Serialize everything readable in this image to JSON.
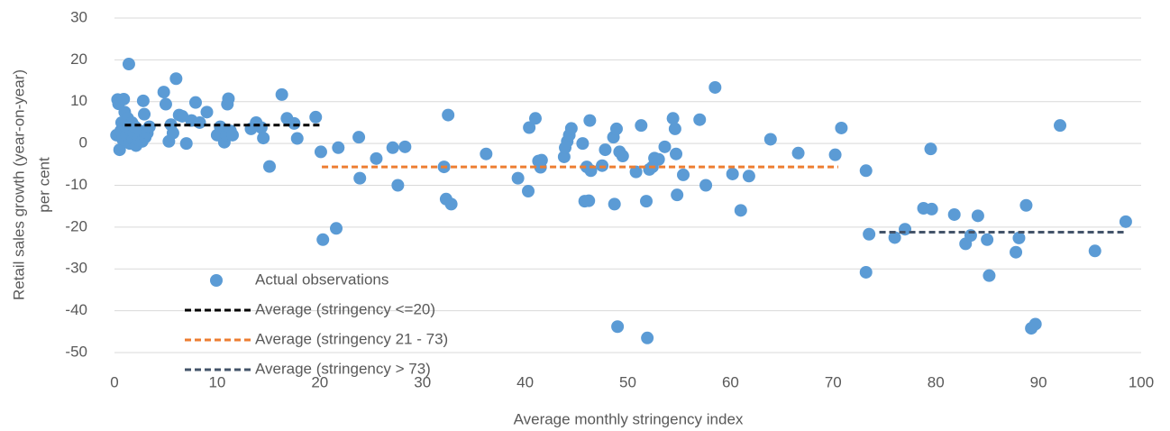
{
  "chart_data": {
    "type": "scatter",
    "xlabel": "Average monthly stringency index",
    "ylabel": [
      "Retail sales growth (year-on-year)",
      "per cent"
    ],
    "xlim": [
      0,
      100
    ],
    "xticks": [
      0,
      10,
      20,
      30,
      40,
      50,
      60,
      70,
      80,
      90,
      100
    ],
    "ylim": [
      -50,
      30
    ],
    "yticks": [
      -50,
      -40,
      -30,
      -20,
      -10,
      0,
      10,
      20,
      30
    ],
    "grid": true,
    "legend": "lower left",
    "series": [
      {
        "name": "Actual observations",
        "color": "#5b9bd5",
        "mode": "markers",
        "x": [
          0.2,
          0.3,
          0.4,
          0.5,
          0.6,
          0.7,
          0.8,
          0.9,
          1,
          1.1,
          1.2,
          1.3,
          1.4,
          1.5,
          1.6,
          1.7,
          1.8,
          1.9,
          2,
          2.1,
          2.3,
          2.5,
          2.7,
          2.8,
          2.9,
          3,
          3.2,
          3.4,
          4.8,
          5,
          5.3,
          5.5,
          5.7,
          6,
          6.3,
          6.6,
          7,
          7.5,
          7.9,
          8.3,
          9,
          10,
          10.3,
          10.5,
          10.7,
          10.9,
          11,
          11.1,
          11.3,
          11.5,
          13.3,
          13.8,
          14.3,
          14.5,
          15.1,
          16.3,
          16.8,
          17.5,
          17.8,
          19.6,
          20.1,
          20.3,
          21.6,
          21.8,
          23.8,
          23.9,
          25.5,
          27.1,
          27.6,
          28.3,
          32.1,
          32.3,
          32.5,
          32.8,
          36.2,
          39.3,
          40.3,
          40.4,
          41,
          41.3,
          41.5,
          41.6,
          43.8,
          43.9,
          44.1,
          44.3,
          44.5,
          45.6,
          45.8,
          46,
          46.2,
          46.3,
          46.4,
          47.5,
          47.8,
          48.6,
          48.7,
          48.9,
          49,
          49.2,
          49.5,
          50.8,
          51.3,
          51.8,
          51.9,
          52.1,
          52.4,
          52.6,
          53,
          53.6,
          54.4,
          54.6,
          54.7,
          54.8,
          55.4,
          57,
          57.6,
          58.5,
          60.2,
          61,
          61.8,
          63.9,
          66.6,
          70.2,
          70.8,
          73.2,
          73.2,
          73.5,
          76,
          77,
          78.8,
          79.5,
          79.6,
          81.8,
          82.9,
          83.4,
          84.1,
          85,
          85.2,
          87.8,
          88.1,
          88.8,
          89.3,
          89.7,
          92.1,
          95.5,
          98.5
        ],
        "values": [
          2,
          10.5,
          9.5,
          -1.5,
          3,
          5,
          1,
          10.6,
          7.5,
          4,
          2,
          6,
          19,
          0,
          3,
          5,
          1,
          2.5,
          4,
          -0.5,
          1,
          3,
          0.5,
          10.2,
          7,
          1.5,
          2.5,
          4,
          12.3,
          9.4,
          0.5,
          4.5,
          2.5,
          15.5,
          6.8,
          6.5,
          0,
          5.5,
          9.8,
          5,
          7.5,
          2,
          4,
          3,
          0.3,
          2,
          9.4,
          10.7,
          3,
          2,
          3.5,
          5,
          3.8,
          1.3,
          -5.5,
          11.7,
          6,
          4.8,
          1.2,
          6.3,
          -2,
          -23,
          -20.3,
          -1,
          1.5,
          -8.3,
          -3.6,
          -1,
          -10,
          -0.8,
          -5.6,
          -13.3,
          6.8,
          -14.5,
          -2.5,
          -8.3,
          -11.4,
          3.8,
          6,
          -4.2,
          -5.7,
          -4,
          -3.2,
          -1,
          0.5,
          2,
          3.6,
          0,
          -13.8,
          -5.6,
          -13.7,
          5.5,
          -6.5,
          -5.3,
          -1.5,
          1.5,
          -14.5,
          3.5,
          -43.8,
          -2,
          -3,
          -6.8,
          4.3,
          -13.8,
          -46.5,
          -6.2,
          -5.6,
          -3.5,
          -3.8,
          -0.8,
          6,
          3.5,
          -2.5,
          -12.3,
          -7.5,
          5.7,
          -10,
          13.4,
          -7.3,
          -16,
          -7.8,
          1,
          -2.3,
          -2.7,
          3.7,
          -6.5,
          -30.8,
          -21.7,
          -22.5,
          -20.5,
          -15.5,
          -1.3,
          -15.7,
          -17,
          -24,
          -22,
          -17.3,
          -23,
          -31.6,
          -26,
          -22.6,
          -14.8,
          -44.2,
          -43.2,
          4.3,
          -25.7,
          -18.7
        ]
      },
      {
        "name": "Average (stringency <=20)",
        "color": "#000000",
        "mode": "dashed-line",
        "x": [
          1,
          20
        ],
        "values": [
          4.4,
          4.4
        ]
      },
      {
        "name": "Average (stringency 21 - 73)",
        "color": "#ed7d31",
        "mode": "dashed-line",
        "x": [
          20.2,
          70.5
        ],
        "values": [
          -5.6,
          -5.6
        ]
      },
      {
        "name": "Average (stringency > 73)",
        "color": "#44546a",
        "mode": "dashed-line",
        "x": [
          74.5,
          98.6
        ],
        "values": [
          -21.2,
          -21.2
        ]
      }
    ]
  }
}
